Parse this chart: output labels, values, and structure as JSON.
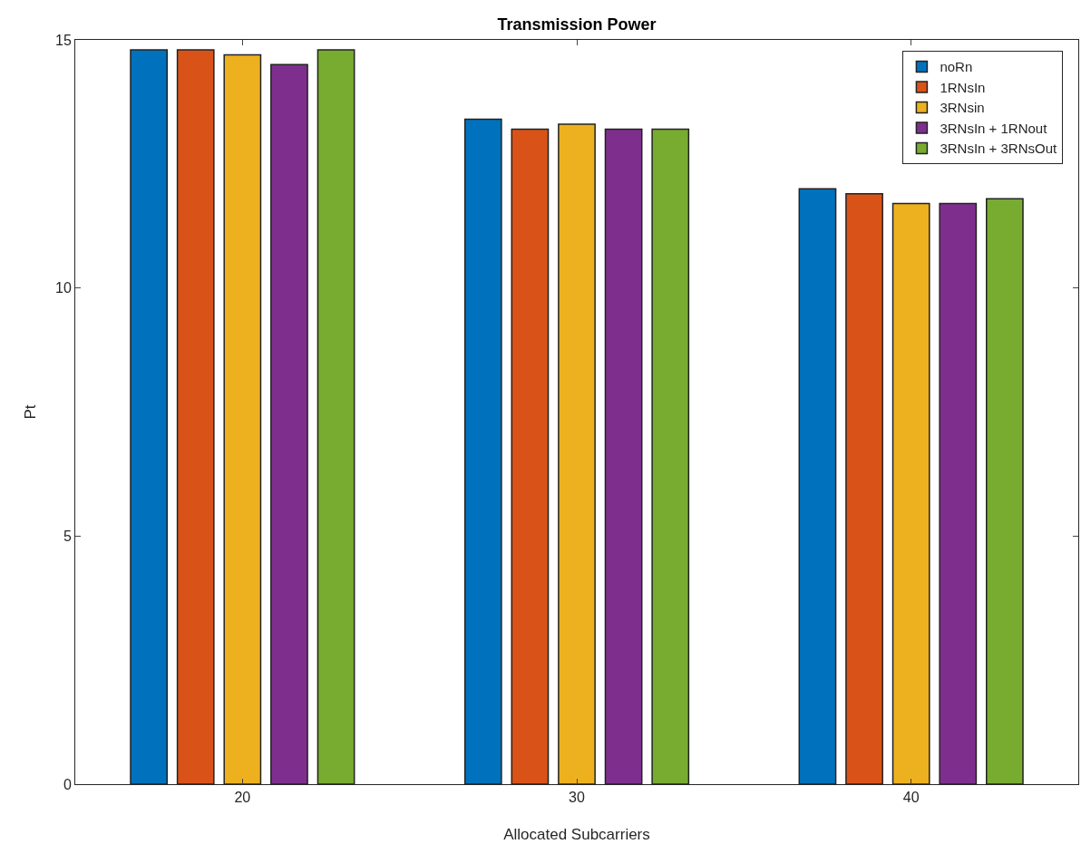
{
  "chart_data": {
    "type": "bar",
    "title": "Transmission Power",
    "xlabel": "Allocated Subcarriers",
    "ylabel": "Pt",
    "categories": [
      "20",
      "30",
      "40"
    ],
    "series": [
      {
        "name": "noRn",
        "color": "#0072bd",
        "values": [
          14.8,
          13.4,
          12.0
        ]
      },
      {
        "name": "1RNsIn",
        "color": "#d95319",
        "values": [
          14.8,
          13.2,
          11.9
        ]
      },
      {
        "name": "3RNsin",
        "color": "#edb120",
        "values": [
          14.7,
          13.3,
          11.7
        ]
      },
      {
        "name": "3RNsIn + 1RNout",
        "color": "#7e2f8e",
        "values": [
          14.5,
          13.2,
          11.7
        ]
      },
      {
        "name": "3RNsIn + 3RNsOut",
        "color": "#77ac30",
        "values": [
          14.8,
          13.2,
          11.8
        ]
      }
    ],
    "ylim": [
      0,
      15
    ],
    "yticks": [
      0,
      5,
      10,
      15
    ],
    "grid": false,
    "legend": "top right"
  }
}
